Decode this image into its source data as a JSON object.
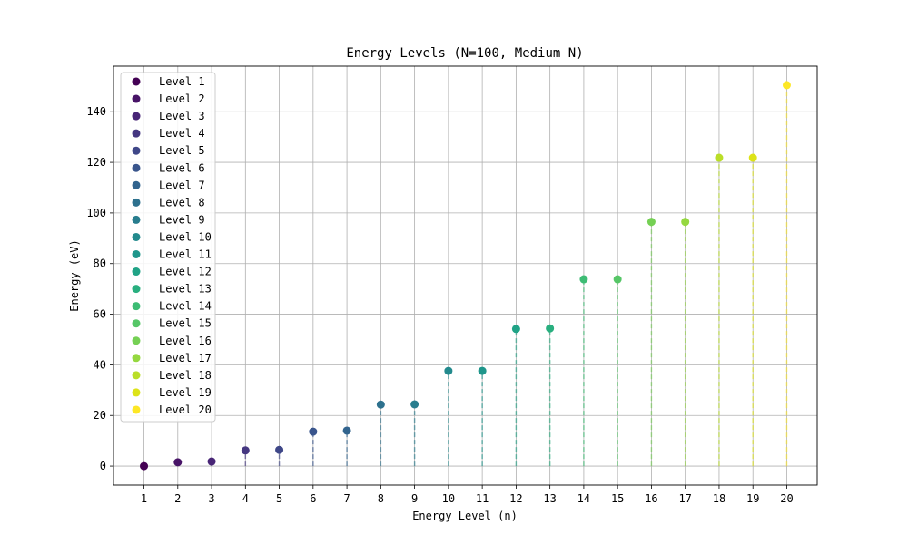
{
  "chart_data": {
    "type": "scatter",
    "title": "Energy Levels (N=100, Medium N)",
    "xlabel": "Energy Level (n)",
    "ylabel": "Energy (eV)",
    "x": [
      1,
      2,
      3,
      4,
      5,
      6,
      7,
      8,
      9,
      10,
      11,
      12,
      13,
      14,
      15,
      16,
      17,
      18,
      19,
      20
    ],
    "y": [
      0.0,
      1.5,
      1.8,
      6.2,
      6.4,
      13.6,
      14.0,
      24.3,
      24.4,
      37.6,
      37.6,
      54.2,
      54.4,
      73.8,
      73.8,
      96.5,
      96.5,
      121.8,
      121.8,
      150.5
    ],
    "series_names": [
      "Level 1",
      "Level 2",
      "Level 3",
      "Level 4",
      "Level 5",
      "Level 6",
      "Level 7",
      "Level 8",
      "Level 9",
      "Level 10",
      "Level 11",
      "Level 12",
      "Level 13",
      "Level 14",
      "Level 15",
      "Level 16",
      "Level 17",
      "Level 18",
      "Level 19",
      "Level 20"
    ],
    "colors": [
      "#440154",
      "#481467",
      "#482576",
      "#453781",
      "#3f4788",
      "#39558c",
      "#32648e",
      "#2d718e",
      "#287d8e",
      "#238a8d",
      "#1f968b",
      "#20a386",
      "#29af7f",
      "#3dbc74",
      "#56c667",
      "#75d054",
      "#95d840",
      "#bade28",
      "#dde318",
      "#fde725"
    ],
    "xticks": [
      1,
      2,
      3,
      4,
      5,
      6,
      7,
      8,
      9,
      10,
      11,
      12,
      13,
      14,
      15,
      16,
      17,
      18,
      19,
      20
    ],
    "yticks": [
      0,
      20,
      40,
      60,
      80,
      100,
      120,
      140
    ],
    "xlim": [
      0.1,
      20.9
    ],
    "ylim": [
      -7.5,
      158.0
    ],
    "grid": true,
    "legend_position": "upper-left",
    "stems": "dashed vertical line from 0 to each point"
  }
}
